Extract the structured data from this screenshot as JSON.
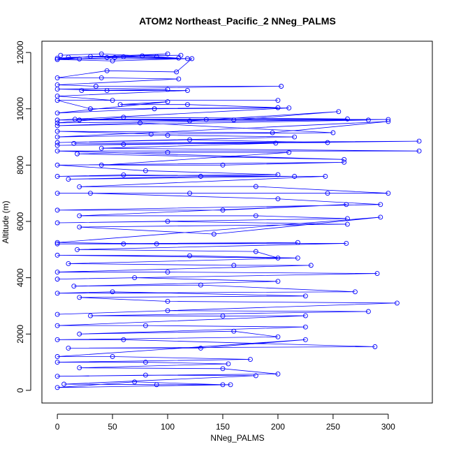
{
  "chart_data": {
    "type": "line",
    "title": "ATOM2 Northeast_Pacific_2 NNeg_PALMS",
    "xlabel": "NNeg_PALMS",
    "ylabel": "Altitude (m)",
    "xlim": [
      -14,
      340
    ],
    "ylim": [
      -450,
      12400
    ],
    "x_ticks": [
      0,
      50,
      100,
      150,
      200,
      250,
      300
    ],
    "y_ticks": [
      0,
      2000,
      4000,
      6000,
      8000,
      10000,
      12000
    ],
    "grid": false,
    "legend": "none",
    "marker": "open-circle",
    "line_color": "#0000ff",
    "series": [
      {
        "values": [
          [
            3,
            11900
          ],
          [
            40,
            11950
          ],
          [
            90,
            11850
          ],
          [
            110,
            11800
          ],
          [
            60,
            11850
          ],
          [
            10,
            11830
          ],
          [
            0,
            11750
          ],
          [
            50,
            11700
          ],
          [
            118,
            11780
          ],
          [
            20,
            11770
          ],
          [
            0,
            11800
          ],
          [
            100,
            11950
          ],
          [
            45,
            11820
          ],
          [
            77,
            11880
          ],
          [
            112,
            11900
          ],
          [
            30,
            11860
          ],
          [
            0,
            11750
          ],
          [
            52,
            11820
          ],
          [
            122,
            11780
          ],
          [
            108,
            11310
          ],
          [
            45,
            11350
          ],
          [
            0,
            11100
          ],
          [
            40,
            11100
          ],
          [
            110,
            11060
          ],
          [
            0,
            10850
          ],
          [
            35,
            10800
          ],
          [
            203,
            10800
          ],
          [
            0,
            10700
          ],
          [
            45,
            10650
          ],
          [
            100,
            10690
          ],
          [
            22,
            10650
          ],
          [
            118,
            10650
          ],
          [
            0,
            10450
          ],
          [
            50,
            10300
          ],
          [
            200,
            10300
          ],
          [
            0,
            10300
          ],
          [
            30,
            10000
          ],
          [
            200,
            10040
          ],
          [
            118,
            10150
          ],
          [
            57,
            10150
          ],
          [
            100,
            10250
          ],
          [
            0,
            9850
          ],
          [
            88,
            10000
          ],
          [
            210,
            10030
          ],
          [
            0,
            9600
          ],
          [
            160,
            9600
          ],
          [
            255,
            9900
          ],
          [
            120,
            9570
          ],
          [
            16,
            9630
          ],
          [
            300,
            9620
          ],
          [
            0,
            9500
          ],
          [
            60,
            9700
          ],
          [
            263,
            9640
          ],
          [
            135,
            9620
          ],
          [
            20,
            9600
          ],
          [
            282,
            9600
          ],
          [
            0,
            9400
          ],
          [
            75,
            9500
          ],
          [
            250,
            9150
          ],
          [
            85,
            9100
          ],
          [
            0,
            9200
          ],
          [
            195,
            9150
          ],
          [
            300,
            9550
          ],
          [
            0,
            9000
          ],
          [
            100,
            9060
          ],
          [
            215,
            9000
          ],
          [
            0,
            8800
          ],
          [
            120,
            8900
          ],
          [
            245,
            8800
          ],
          [
            15,
            8770
          ],
          [
            328,
            8850
          ],
          [
            0,
            8700
          ],
          [
            60,
            8740
          ],
          [
            198,
            8780
          ],
          [
            40,
            8600
          ],
          [
            328,
            8500
          ],
          [
            0,
            8500
          ],
          [
            260,
            8200
          ],
          [
            18,
            8400
          ],
          [
            100,
            8450
          ],
          [
            210,
            8450
          ],
          [
            40,
            8000
          ],
          [
            150,
            8000
          ],
          [
            260,
            8100
          ],
          [
            0,
            8000
          ],
          [
            80,
            7800
          ],
          [
            200,
            7660
          ],
          [
            0,
            7600
          ],
          [
            60,
            7650
          ],
          [
            215,
            7600
          ],
          [
            10,
            7500
          ],
          [
            130,
            7600
          ],
          [
            243,
            7600
          ],
          [
            20,
            7230
          ],
          [
            180,
            7240
          ],
          [
            300,
            7000
          ],
          [
            0,
            7000
          ],
          [
            120,
            7000
          ],
          [
            245,
            7000
          ],
          [
            30,
            7000
          ],
          [
            200,
            6800
          ],
          [
            293,
            6600
          ],
          [
            0,
            6400
          ],
          [
            150,
            6400
          ],
          [
            262,
            6600
          ],
          [
            20,
            6200
          ],
          [
            180,
            6200
          ],
          [
            263,
            6100
          ],
          [
            0,
            5950
          ],
          [
            100,
            6000
          ],
          [
            263,
            5900
          ],
          [
            20,
            5800
          ],
          [
            142,
            5550
          ],
          [
            293,
            6150
          ],
          [
            0,
            5250
          ],
          [
            90,
            5200
          ],
          [
            218,
            5250
          ],
          [
            0,
            5200
          ],
          [
            60,
            5200
          ],
          [
            262,
            5220
          ],
          [
            18,
            5000
          ],
          [
            180,
            4930
          ],
          [
            200,
            4700
          ],
          [
            0,
            4800
          ],
          [
            120,
            4780
          ],
          [
            218,
            4700
          ],
          [
            10,
            4500
          ],
          [
            160,
            4440
          ],
          [
            230,
            4440
          ],
          [
            0,
            4200
          ],
          [
            100,
            4200
          ],
          [
            290,
            4150
          ],
          [
            0,
            3950
          ],
          [
            70,
            4000
          ],
          [
            200,
            3870
          ],
          [
            15,
            3700
          ],
          [
            130,
            3740
          ],
          [
            270,
            3500
          ],
          [
            0,
            3450
          ],
          [
            50,
            3500
          ],
          [
            225,
            3350
          ],
          [
            20,
            3300
          ],
          [
            100,
            3160
          ],
          [
            308,
            3100
          ],
          [
            0,
            2700
          ],
          [
            100,
            2830
          ],
          [
            282,
            2800
          ],
          [
            30,
            2650
          ],
          [
            150,
            2640
          ],
          [
            225,
            2650
          ],
          [
            0,
            2300
          ],
          [
            80,
            2300
          ],
          [
            225,
            2250
          ],
          [
            20,
            2000
          ],
          [
            160,
            2100
          ],
          [
            200,
            1900
          ],
          [
            0,
            1800
          ],
          [
            60,
            1800
          ],
          [
            288,
            1550
          ],
          [
            10,
            1500
          ],
          [
            130,
            1500
          ],
          [
            225,
            1800
          ],
          [
            0,
            1200
          ],
          [
            50,
            1200
          ],
          [
            175,
            1100
          ],
          [
            0,
            1000
          ],
          [
            80,
            1000
          ],
          [
            155,
            940
          ],
          [
            20,
            800
          ],
          [
            150,
            770
          ],
          [
            200,
            580
          ],
          [
            0,
            500
          ],
          [
            80,
            540
          ],
          [
            180,
            520
          ],
          [
            6,
            220
          ],
          [
            90,
            200
          ],
          [
            157,
            200
          ],
          [
            0,
            100
          ],
          [
            70,
            300
          ],
          [
            150,
            200
          ]
        ]
      }
    ]
  }
}
